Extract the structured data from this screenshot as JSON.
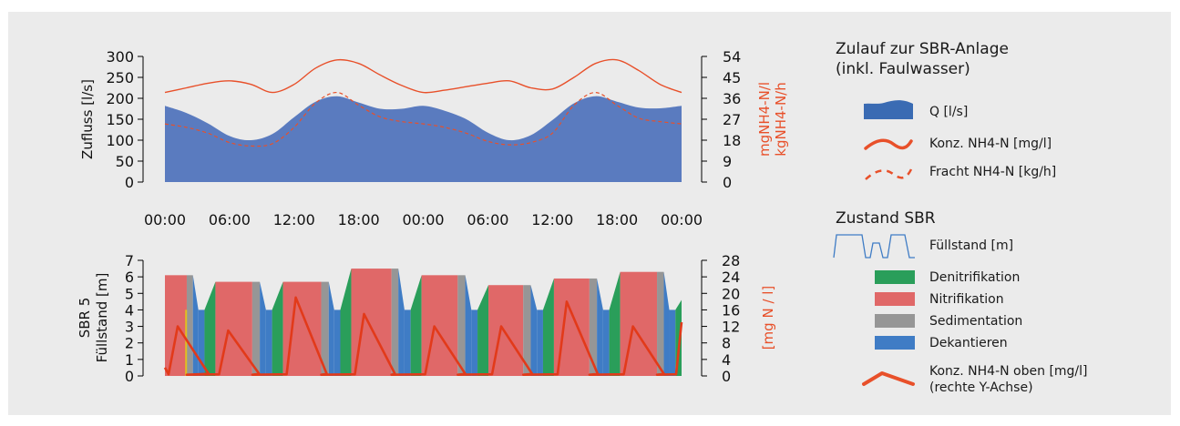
{
  "chart_data": [
    {
      "type": "area",
      "title": "",
      "xlabel": "",
      "ylabel": "Zufluss [l/s]",
      "ylabel_right": [
        "mgNH4-N/l",
        "kgNH4-N/h"
      ],
      "ylim": [
        0,
        300
      ],
      "ylim_right": [
        0,
        54
      ],
      "yticks": [
        "0",
        "50",
        "100",
        "150",
        "200",
        "250",
        "300"
      ],
      "yticks_right": [
        "0",
        "9",
        "18",
        "27",
        "36",
        "45",
        "54"
      ],
      "xticks": [
        "00:00",
        "06:00",
        "12:00",
        "18:00",
        "00:00",
        "06:00",
        "12:00",
        "18:00",
        "00:00"
      ],
      "x_hours": [
        0,
        2,
        4,
        6,
        8,
        10,
        12,
        14,
        16,
        18,
        20,
        22,
        24,
        26,
        28,
        30,
        32,
        34,
        36,
        38,
        40,
        42,
        44,
        46,
        48
      ],
      "series": [
        {
          "name": "Q [l/s]",
          "axis": "left",
          "color": "#5a7bbf",
          "values": [
            182,
            165,
            140,
            110,
            100,
            115,
            155,
            192,
            205,
            190,
            175,
            175,
            182,
            170,
            150,
            118,
            100,
            112,
            148,
            188,
            205,
            192,
            178,
            176,
            182
          ]
        },
        {
          "name": "Konz. NH4-N [mg/l]",
          "axis": "right",
          "color": "#e8502a",
          "values": [
            38.5,
            40.5,
            42.5,
            43.5,
            42,
            38.5,
            42,
            49,
            52.5,
            51,
            46,
            41.5,
            38.5,
            39.5,
            41,
            42.5,
            43.5,
            40.5,
            40,
            45,
            51,
            52.5,
            48,
            42,
            38.5
          ]
        },
        {
          "name": "Fracht NH4-N [kg/h]",
          "axis": "right",
          "color": "#e8502a",
          "dashed": true,
          "values": [
            25,
            23.5,
            21,
            17,
            15.5,
            16.5,
            23.5,
            34,
            38.5,
            33,
            28,
            26,
            25,
            23.5,
            21,
            17.5,
            16,
            17,
            21,
            33,
            38.5,
            33,
            27.5,
            26,
            25
          ]
        }
      ]
    },
    {
      "type": "area",
      "title": "",
      "ylabel": [
        "SBR 5",
        "Füllstand [m]"
      ],
      "ylabel_right": "[mg N / l]",
      "ylim": [
        0,
        7
      ],
      "ylim_right": [
        0,
        28
      ],
      "yticks": [
        "0",
        "1",
        "2",
        "3",
        "4",
        "5",
        "6",
        "7"
      ],
      "yticks_right": [
        "0",
        "4",
        "8",
        "12",
        "16",
        "20",
        "24",
        "28"
      ],
      "cycles": [
        {
          "d0": 0,
          "n": 3.2,
          "s": 0.9,
          "k": 0.8,
          "w": 0.9,
          "level": 6.1
        },
        {
          "d0": 1.6,
          "n": 5.4,
          "s": 1.1,
          "k": 0.9,
          "w": 0.9,
          "level": 5.7
        },
        {
          "d0": 1.6,
          "n": 5.6,
          "s": 1.1,
          "k": 0.8,
          "w": 0.9,
          "level": 5.7
        },
        {
          "d0": 1.6,
          "n": 5.9,
          "s": 1.0,
          "k": 0.9,
          "w": 0.9,
          "level": 6.5
        },
        {
          "d0": 1.6,
          "n": 5.3,
          "s": 1.1,
          "k": 0.9,
          "w": 0.9,
          "level": 6.1
        },
        {
          "d0": 1.6,
          "n": 5.1,
          "s": 1.1,
          "k": 0.9,
          "w": 0.9,
          "level": 5.5
        },
        {
          "d0": 1.6,
          "n": 5.2,
          "s": 1.1,
          "k": 0.9,
          "w": 0.9,
          "level": 5.9
        },
        {
          "d0": 1.6,
          "n": 5.4,
          "s": 1.0,
          "k": 0.8,
          "w": 0.9,
          "level": 6.3
        },
        {
          "d0": 0.9,
          "n": 0,
          "s": 0,
          "k": 0,
          "w": 0,
          "level": 4.6
        }
      ],
      "nh4_peaks": [
        12,
        11,
        19,
        15,
        12,
        12,
        18,
        12
      ],
      "phase_colors": {
        "Denitrifikation": "#2a9e5a",
        "Nitrifikation": "#e06868",
        "Sedimentation": "#969696",
        "Dekantieren": "#3f7cc5"
      }
    }
  ],
  "legend": {
    "zulauf_title_1": "Zulauf zur SBR-Anlage",
    "zulauf_title_2": "(inkl. Faulwasser)",
    "q": "Q [l/s]",
    "konz": "Konz. NH4-N [mg/l]",
    "fracht": "Fracht NH4-N [kg/h]",
    "zustand_title": "Zustand SBR",
    "fuellstand": "Füllstand [m]",
    "denitrifikation": "Denitrifikation",
    "nitrifikation": "Nitrifikation",
    "sedimentation": "Sedimentation",
    "dekantieren": "Dekantieren",
    "konz_oben_1": "Konz. NH4-N oben [mg/l]",
    "konz_oben_2": "(rechte Y-Achse)"
  }
}
